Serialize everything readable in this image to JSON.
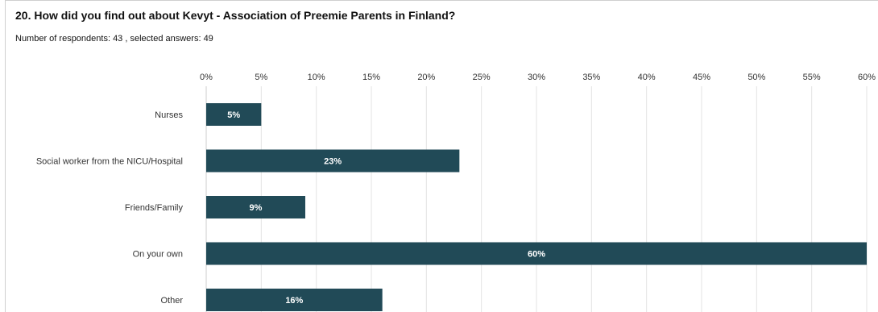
{
  "title": "20. How did you find out about Kevyt - Association of Preemie Parents in Finland?",
  "subtitle": "Number of respondents: 43 , selected answers: 49",
  "colors": {
    "bar": "#214a57",
    "grid": "#e3e3e3",
    "axis": "#cccccc"
  },
  "chart_data": {
    "type": "bar",
    "orientation": "horizontal",
    "categories": [
      "Nurses",
      "Social worker from the NICU/Hospital",
      "Friends/Family",
      "On your own",
      "Other"
    ],
    "values": [
      5,
      23,
      9,
      60,
      16
    ],
    "value_labels": [
      "5%",
      "23%",
      "9%",
      "60%",
      "16%"
    ],
    "xlim": [
      0,
      60
    ],
    "xticks": [
      0,
      5,
      10,
      15,
      20,
      25,
      30,
      35,
      40,
      45,
      50,
      55,
      60
    ],
    "xtick_labels": [
      "0%",
      "5%",
      "10%",
      "15%",
      "20%",
      "25%",
      "30%",
      "35%",
      "40%",
      "45%",
      "50%",
      "55%",
      "60%"
    ],
    "unit": "%",
    "grid": true,
    "axis_position": "top"
  }
}
